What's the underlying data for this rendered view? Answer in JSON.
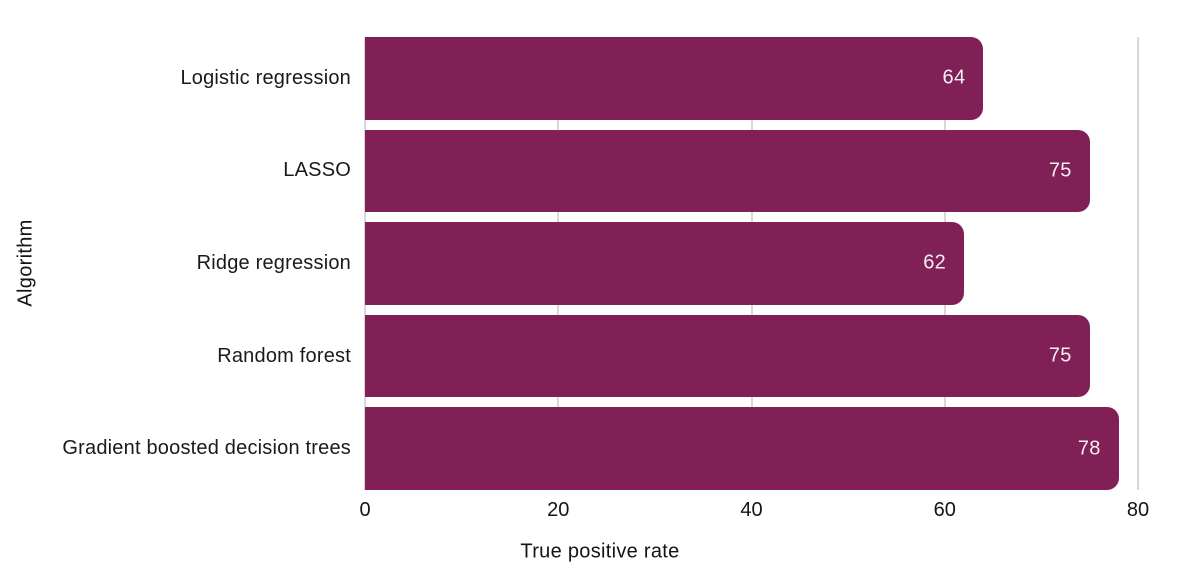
{
  "chart_data": {
    "type": "bar",
    "orientation": "horizontal",
    "title": "",
    "xlabel": "True positive rate",
    "ylabel": "Algorithm",
    "categories": [
      "Logistic regression",
      "LASSO",
      "Ridge regression",
      "Random forest",
      "Gradient boosted decision trees"
    ],
    "values": [
      64,
      75,
      62,
      75,
      78
    ],
    "value_labels": [
      "64",
      "75",
      "62",
      "75",
      "78"
    ],
    "xlim": [
      0,
      80
    ],
    "xticks": [
      0,
      20,
      40,
      60,
      80
    ],
    "xtick_labels": [
      "0",
      "20",
      "40",
      "60",
      "80"
    ],
    "grid": "vertical",
    "legend": "none",
    "colors": {
      "bar_fill": "#812057",
      "value_text": "#f5eef3",
      "gridline": "#d8d8d8",
      "axis_text": "#141414",
      "background": "#ffffff"
    }
  }
}
